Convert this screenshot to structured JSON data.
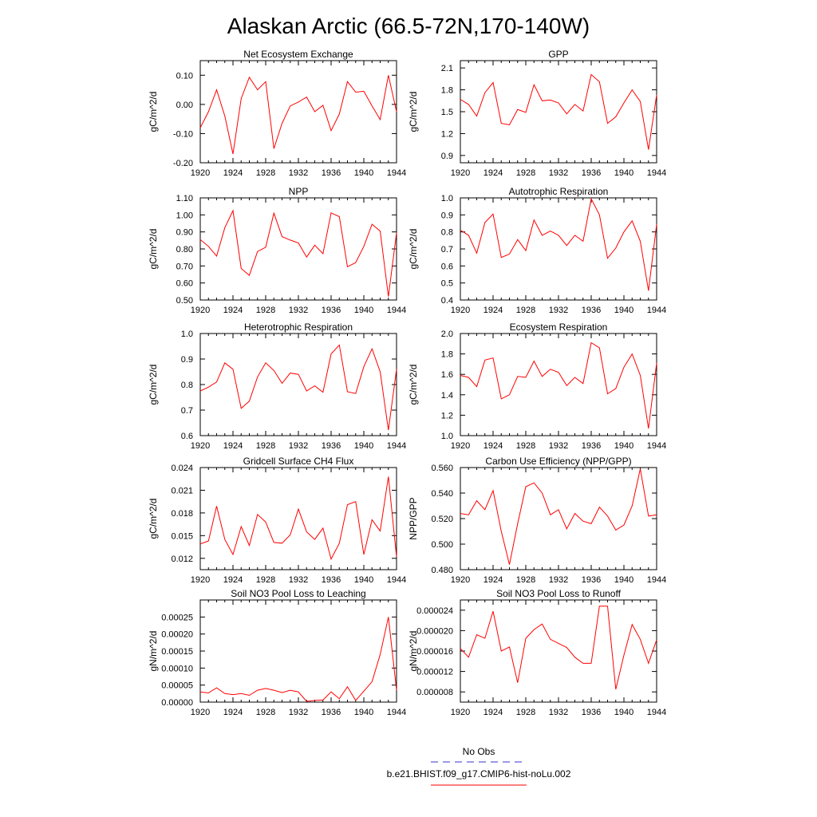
{
  "figure": {
    "title": "Alaskan Arctic (66.5-72N,170-140W)"
  },
  "legend": {
    "entries": [
      {
        "label": "No Obs",
        "color": "#3333cc",
        "style": "dashed"
      },
      {
        "label": "b.e21.BHIST.f09_g17.CMIP6-hist-noLu.002",
        "color": "#ff0000",
        "style": "solid"
      }
    ]
  },
  "chart_data": [
    {
      "type": "line",
      "title": "Net Ecosystem Exchange",
      "ylabel": "gC/m^2/d",
      "xlabel": "",
      "xlim": [
        1920,
        1944
      ],
      "ylim": [
        -0.2,
        0.15
      ],
      "xticks": [
        1920,
        1924,
        1928,
        1932,
        1936,
        1940,
        1944
      ],
      "yticks": [
        "-0.20",
        "-0.10",
        "0.00",
        "0.10"
      ],
      "ytick_values": [
        -0.2,
        -0.1,
        0.0,
        0.1
      ],
      "color": "#ff0000",
      "x": [
        1920,
        1921,
        1922,
        1923,
        1924,
        1925,
        1926,
        1927,
        1928,
        1929,
        1930,
        1931,
        1932,
        1933,
        1934,
        1935,
        1936,
        1937,
        1938,
        1939,
        1940,
        1941,
        1942,
        1943,
        1944
      ],
      "y": [
        -0.08,
        -0.025,
        0.05,
        -0.04,
        -0.17,
        0.02,
        0.093,
        0.05,
        0.078,
        -0.152,
        -0.065,
        -0.005,
        0.008,
        0.025,
        -0.025,
        -0.003,
        -0.09,
        -0.033,
        0.078,
        0.042,
        0.045,
        -0.005,
        -0.052,
        0.1,
        -0.025
      ]
    },
    {
      "type": "line",
      "title": "GPP",
      "ylabel": "gC/m^2/d",
      "xlabel": "",
      "xlim": [
        1920,
        1944
      ],
      "ylim": [
        0.8,
        2.2
      ],
      "xticks": [
        1920,
        1924,
        1928,
        1932,
        1936,
        1940,
        1944
      ],
      "yticks": [
        "0.9",
        "1.2",
        "1.5",
        "1.8",
        "2.1"
      ],
      "ytick_values": [
        0.9,
        1.2,
        1.5,
        1.8,
        2.1
      ],
      "color": "#ff0000",
      "x": [
        1920,
        1921,
        1922,
        1923,
        1924,
        1925,
        1926,
        1927,
        1928,
        1929,
        1930,
        1931,
        1932,
        1933,
        1934,
        1935,
        1936,
        1937,
        1938,
        1939,
        1940,
        1941,
        1942,
        1943,
        1944
      ],
      "y": [
        1.67,
        1.6,
        1.44,
        1.76,
        1.9,
        1.34,
        1.32,
        1.53,
        1.49,
        1.87,
        1.65,
        1.66,
        1.62,
        1.47,
        1.6,
        1.51,
        2.01,
        1.91,
        1.34,
        1.43,
        1.62,
        1.8,
        1.64,
        0.98,
        1.73
      ]
    },
    {
      "type": "line",
      "title": "NPP",
      "ylabel": "gC/m^2/d",
      "xlabel": "",
      "xlim": [
        1920,
        1944
      ],
      "ylim": [
        0.5,
        1.1
      ],
      "xticks": [
        1920,
        1924,
        1928,
        1932,
        1936,
        1940,
        1944
      ],
      "yticks": [
        "0.50",
        "0.60",
        "0.70",
        "0.80",
        "0.90",
        "1.00",
        "1.10"
      ],
      "ytick_values": [
        0.5,
        0.6,
        0.7,
        0.8,
        0.9,
        1.0,
        1.1
      ],
      "color": "#ff0000",
      "x": [
        1920,
        1921,
        1922,
        1923,
        1924,
        1925,
        1926,
        1927,
        1928,
        1929,
        1930,
        1931,
        1932,
        1933,
        1934,
        1935,
        1936,
        1937,
        1938,
        1939,
        1940,
        1941,
        1942,
        1943,
        1944
      ],
      "y": [
        0.855,
        0.815,
        0.758,
        0.925,
        1.025,
        0.685,
        0.645,
        0.785,
        0.81,
        1.01,
        0.872,
        0.852,
        0.835,
        0.752,
        0.822,
        0.772,
        1.012,
        0.99,
        0.695,
        0.72,
        0.815,
        0.945,
        0.905,
        0.52,
        0.895
      ]
    },
    {
      "type": "line",
      "title": "Autotrophic Respiration",
      "ylabel": "gC/m^2/d",
      "xlabel": "",
      "xlim": [
        1920,
        1944
      ],
      "ylim": [
        0.4,
        1.0
      ],
      "xticks": [
        1920,
        1924,
        1928,
        1932,
        1936,
        1940,
        1944
      ],
      "yticks": [
        "0.4",
        "0.5",
        "0.6",
        "0.7",
        "0.8",
        "0.9",
        "1.0"
      ],
      "ytick_values": [
        0.4,
        0.5,
        0.6,
        0.7,
        0.8,
        0.9,
        1.0
      ],
      "color": "#ff0000",
      "x": [
        1920,
        1921,
        1922,
        1923,
        1924,
        1925,
        1926,
        1927,
        1928,
        1929,
        1930,
        1931,
        1932,
        1933,
        1934,
        1935,
        1936,
        1937,
        1938,
        1939,
        1940,
        1941,
        1942,
        1943,
        1944
      ],
      "y": [
        0.81,
        0.78,
        0.675,
        0.855,
        0.905,
        0.65,
        0.67,
        0.755,
        0.69,
        0.87,
        0.78,
        0.805,
        0.78,
        0.72,
        0.78,
        0.745,
        0.995,
        0.9,
        0.645,
        0.705,
        0.8,
        0.865,
        0.745,
        0.455,
        0.845
      ]
    },
    {
      "type": "line",
      "title": "Heterotrophic Respiration",
      "ylabel": "gC/m^2/d",
      "xlabel": "",
      "xlim": [
        1920,
        1944
      ],
      "ylim": [
        0.6,
        1.0
      ],
      "xticks": [
        1920,
        1924,
        1928,
        1932,
        1936,
        1940,
        1944
      ],
      "yticks": [
        "0.6",
        "0.7",
        "0.8",
        "0.9",
        "1.0"
      ],
      "ytick_values": [
        0.6,
        0.7,
        0.8,
        0.9,
        1.0
      ],
      "color": "#ff0000",
      "x": [
        1920,
        1921,
        1922,
        1923,
        1924,
        1925,
        1926,
        1927,
        1928,
        1929,
        1930,
        1931,
        1932,
        1933,
        1934,
        1935,
        1936,
        1937,
        1938,
        1939,
        1940,
        1941,
        1942,
        1943,
        1944
      ],
      "y": [
        0.775,
        0.79,
        0.81,
        0.885,
        0.86,
        0.707,
        0.735,
        0.83,
        0.885,
        0.855,
        0.805,
        0.845,
        0.84,
        0.775,
        0.795,
        0.77,
        0.92,
        0.955,
        0.772,
        0.765,
        0.87,
        0.94,
        0.85,
        0.622,
        0.86
      ]
    },
    {
      "type": "line",
      "title": "Ecosystem Respiration",
      "ylabel": "gC/m^2/d",
      "xlabel": "",
      "xlim": [
        1920,
        1944
      ],
      "ylim": [
        1.0,
        2.0
      ],
      "xticks": [
        1920,
        1924,
        1928,
        1932,
        1936,
        1940,
        1944
      ],
      "yticks": [
        "1.0",
        "1.2",
        "1.4",
        "1.6",
        "1.8",
        "2.0"
      ],
      "ytick_values": [
        1.0,
        1.2,
        1.4,
        1.6,
        1.8,
        2.0
      ],
      "color": "#ff0000",
      "x": [
        1920,
        1921,
        1922,
        1923,
        1924,
        1925,
        1926,
        1927,
        1928,
        1929,
        1930,
        1931,
        1932,
        1933,
        1934,
        1935,
        1936,
        1937,
        1938,
        1939,
        1940,
        1941,
        1942,
        1943,
        1944
      ],
      "y": [
        1.59,
        1.57,
        1.48,
        1.74,
        1.76,
        1.36,
        1.4,
        1.58,
        1.57,
        1.73,
        1.58,
        1.65,
        1.62,
        1.49,
        1.57,
        1.51,
        1.91,
        1.86,
        1.41,
        1.46,
        1.67,
        1.8,
        1.59,
        1.07,
        1.71
      ]
    },
    {
      "type": "line",
      "title": "Gridcell Surface CH4 Flux",
      "ylabel": "gC/m^2/d",
      "xlabel": "",
      "xlim": [
        1920,
        1944
      ],
      "ylim": [
        0.0105,
        0.024
      ],
      "xticks": [
        1920,
        1924,
        1928,
        1932,
        1936,
        1940,
        1944
      ],
      "yticks": [
        "0.012",
        "0.015",
        "0.018",
        "0.021",
        "0.024"
      ],
      "ytick_values": [
        0.012,
        0.015,
        0.018,
        0.021,
        0.024
      ],
      "color": "#ff0000",
      "x": [
        1920,
        1921,
        1922,
        1923,
        1924,
        1925,
        1926,
        1927,
        1928,
        1929,
        1930,
        1931,
        1932,
        1933,
        1934,
        1935,
        1936,
        1937,
        1938,
        1939,
        1940,
        1941,
        1942,
        1943,
        1944
      ],
      "y": [
        0.0139,
        0.0143,
        0.0189,
        0.0145,
        0.0125,
        0.0162,
        0.0137,
        0.0178,
        0.0168,
        0.0141,
        0.014,
        0.0151,
        0.0185,
        0.0155,
        0.0145,
        0.016,
        0.0119,
        0.014,
        0.0191,
        0.0195,
        0.0125,
        0.0171,
        0.0156,
        0.0228,
        0.0122
      ]
    },
    {
      "type": "line",
      "title": "Carbon Use Efficiency (NPP/GPP)",
      "ylabel": "NPP/GPP",
      "xlabel": "",
      "xlim": [
        1920,
        1944
      ],
      "ylim": [
        0.48,
        0.56
      ],
      "xticks": [
        1920,
        1924,
        1928,
        1932,
        1936,
        1940,
        1944
      ],
      "yticks": [
        "0.480",
        "0.500",
        "0.520",
        "0.540",
        "0.560"
      ],
      "ytick_values": [
        0.48,
        0.5,
        0.52,
        0.54,
        0.56
      ],
      "color": "#ff0000",
      "x": [
        1920,
        1921,
        1922,
        1923,
        1924,
        1925,
        1926,
        1927,
        1928,
        1929,
        1930,
        1931,
        1932,
        1933,
        1934,
        1935,
        1936,
        1937,
        1938,
        1939,
        1940,
        1941,
        1942,
        1943,
        1944
      ],
      "y": [
        0.524,
        0.523,
        0.534,
        0.527,
        0.542,
        0.51,
        0.484,
        0.516,
        0.545,
        0.548,
        0.54,
        0.523,
        0.527,
        0.512,
        0.524,
        0.518,
        0.516,
        0.529,
        0.522,
        0.511,
        0.515,
        0.53,
        0.559,
        0.522,
        0.523
      ]
    },
    {
      "type": "line",
      "title": "Soil NO3 Pool Loss to Leaching",
      "ylabel": "gN/m^2/d",
      "xlabel": "",
      "xlim": [
        1920,
        1944
      ],
      "ylim": [
        0.0,
        0.0003
      ],
      "xticks": [
        1920,
        1924,
        1928,
        1932,
        1936,
        1940,
        1944
      ],
      "yticks": [
        "0.00000",
        "0.00005",
        "0.00010",
        "0.00015",
        "0.00020",
        "0.00025"
      ],
      "ytick_values": [
        0.0,
        5e-05,
        0.0001,
        0.00015,
        0.0002,
        0.00025
      ],
      "color": "#ff0000",
      "x": [
        1920,
        1921,
        1922,
        1923,
        1924,
        1925,
        1926,
        1927,
        1928,
        1929,
        1930,
        1931,
        1932,
        1933,
        1934,
        1935,
        1936,
        1937,
        1938,
        1939,
        1940,
        1941,
        1942,
        1943,
        1944
      ],
      "y": [
        3e-05,
        2.7e-05,
        4.2e-05,
        2.5e-05,
        2.2e-05,
        2.5e-05,
        2e-05,
        3.5e-05,
        4e-05,
        3.5e-05,
        2.8e-05,
        3.5e-05,
        3e-05,
        2e-06,
        5e-06,
        6e-06,
        3e-05,
        1e-05,
        4.5e-05,
        5e-06,
        3.2e-05,
        6e-05,
        0.00014,
        0.00025,
        3.5e-05
      ]
    },
    {
      "type": "line",
      "title": "Soil NO3 Pool Loss to Runoff",
      "ylabel": "gN/m^2/d",
      "xlabel": "",
      "xlim": [
        1920,
        1944
      ],
      "ylim": [
        6e-06,
        2.6e-05
      ],
      "xticks": [
        1920,
        1924,
        1928,
        1932,
        1936,
        1940,
        1944
      ],
      "yticks": [
        "0.000008",
        "0.000012",
        "0.000016",
        "0.000020",
        "0.000024"
      ],
      "ytick_values": [
        8e-06,
        1.2e-05,
        1.6e-05,
        2e-05,
        2.4e-05
      ],
      "color": "#ff0000",
      "x": [
        1920,
        1921,
        1922,
        1923,
        1924,
        1925,
        1926,
        1927,
        1928,
        1929,
        1930,
        1931,
        1932,
        1933,
        1934,
        1935,
        1936,
        1937,
        1938,
        1939,
        1940,
        1941,
        1942,
        1943,
        1944
      ],
      "y": [
        1.65e-05,
        1.48e-05,
        1.92e-05,
        1.85e-05,
        2.38e-05,
        1.6e-05,
        1.68e-05,
        9.8e-06,
        1.85e-05,
        2.02e-05,
        2.13e-05,
        1.83e-05,
        1.75e-05,
        1.67e-05,
        1.48e-05,
        1.36e-05,
        1.36e-05,
        2.48e-05,
        2.48e-05,
        8.5e-06,
        1.52e-05,
        2.12e-05,
        1.83e-05,
        1.36e-05,
        1.82e-05
      ]
    }
  ]
}
